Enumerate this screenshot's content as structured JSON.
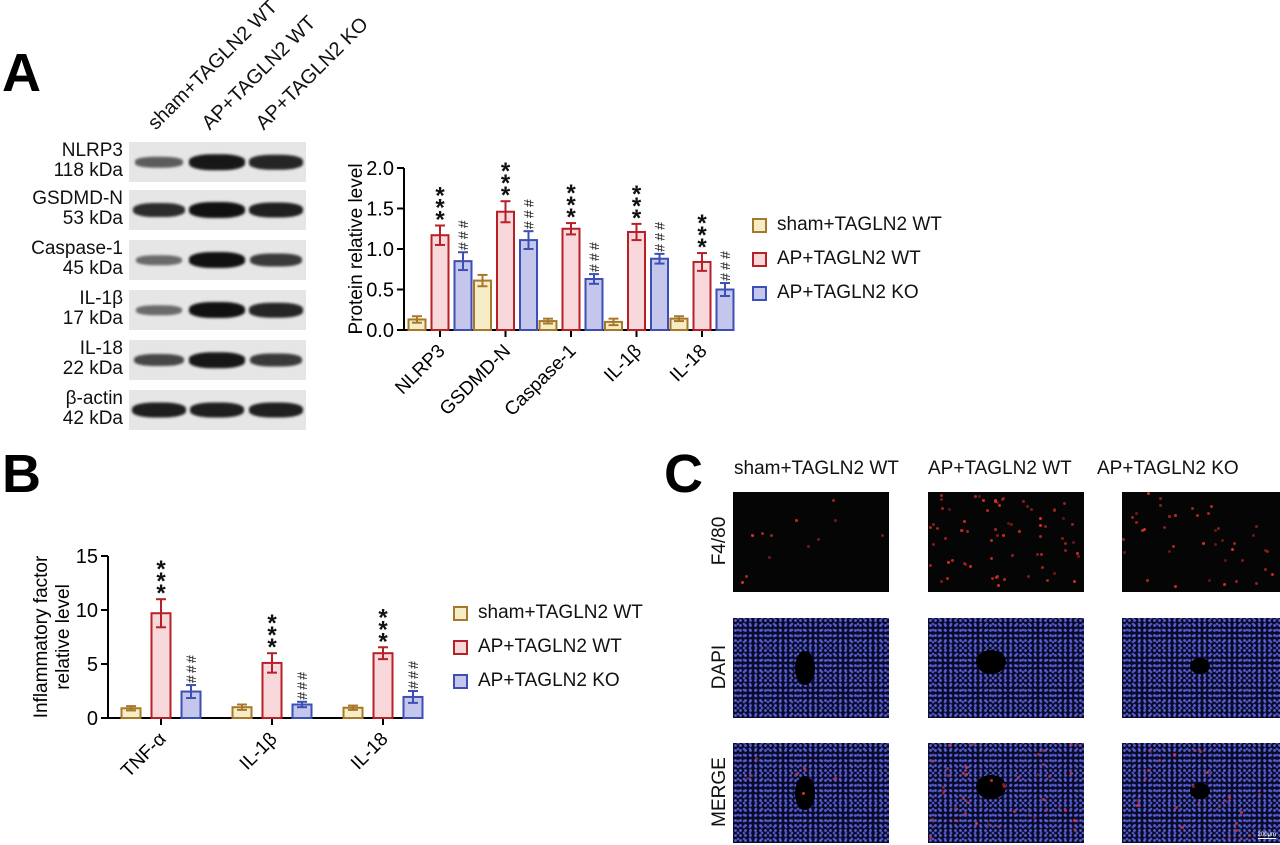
{
  "panels": {
    "A": {
      "letter": "A"
    },
    "B": {
      "letter": "B"
    },
    "C": {
      "letter": "C"
    }
  },
  "groups": [
    "sham+TAGLN2 WT",
    "AP+TAGLN2 WT",
    "AP+TAGLN2 KO"
  ],
  "colors": {
    "sham_fill": "#f5ecc8",
    "sham_border": "#a8782a",
    "ap_wt_fill": "#f9d8dc",
    "ap_wt_border": "#b82028",
    "ap_ko_fill": "#c5c6ec",
    "ap_ko_border": "#3b4fb4"
  },
  "western_blot": {
    "lanes": [
      "sham+TAGLN2 WT",
      "AP+TAGLN2 WT",
      "AP+TAGLN2 KO"
    ],
    "rows": [
      {
        "protein": "NLRP3",
        "size": "118 kDa",
        "intensity": [
          0.45,
          0.95,
          0.85
        ]
      },
      {
        "protein": "GSDMD-N",
        "size": "53 kDa",
        "intensity": [
          0.8,
          1.0,
          0.9
        ]
      },
      {
        "protein": "Caspase-1",
        "size": "45 kDa",
        "intensity": [
          0.35,
          1.0,
          0.7
        ]
      },
      {
        "protein": "IL-1β",
        "size": "17 kDa",
        "intensity": [
          0.35,
          1.0,
          0.85
        ]
      },
      {
        "protein": "IL-18",
        "size": "22 kDa",
        "intensity": [
          0.6,
          0.95,
          0.7
        ]
      },
      {
        "protein": "β-actin",
        "size": "42 kDa",
        "intensity": [
          0.9,
          0.9,
          0.9
        ]
      }
    ]
  },
  "legend": {
    "items": [
      "sham+TAGLN2 WT",
      "AP+TAGLN2 WT",
      "AP+TAGLN2 KO"
    ]
  },
  "chart_data": [
    {
      "id": "A",
      "type": "bar",
      "title": "",
      "xlabel": "",
      "ylabel": "Protein relative level",
      "ylim": [
        0,
        2.0
      ],
      "yticks": [
        "0.0",
        "0.5",
        "1.0",
        "1.5",
        "2.0"
      ],
      "categories": [
        "NLRP3",
        "GSDMD-N",
        "Caspase-1",
        "IL-1β",
        "IL-18"
      ],
      "series": [
        {
          "name": "sham+TAGLN2 WT",
          "values": [
            0.13,
            0.61,
            0.11,
            0.1,
            0.14
          ],
          "errors": [
            0.04,
            0.07,
            0.03,
            0.04,
            0.03
          ]
        },
        {
          "name": "AP+TAGLN2 WT",
          "values": [
            1.17,
            1.46,
            1.25,
            1.21,
            0.84
          ],
          "errors": [
            0.12,
            0.13,
            0.07,
            0.1,
            0.11
          ]
        },
        {
          "name": "AP+TAGLN2 KO",
          "values": [
            0.85,
            1.11,
            0.63,
            0.88,
            0.5
          ],
          "errors": [
            0.11,
            0.11,
            0.06,
            0.06,
            0.08
          ]
        }
      ],
      "annotations": {
        "AP+TAGLN2 WT": "***",
        "AP+TAGLN2 KO": "###"
      },
      "legend_position": "right",
      "grid": false
    },
    {
      "id": "B",
      "type": "bar",
      "title": "",
      "xlabel": "",
      "ylabel": "Inflammatory factor relative level",
      "ylabel_lines": [
        "Inflammatory factor",
        "relative level"
      ],
      "ylim": [
        0,
        15
      ],
      "yticks": [
        "0",
        "5",
        "10",
        "15"
      ],
      "categories": [
        "TNF-α",
        "IL-1β",
        "IL-18"
      ],
      "series": [
        {
          "name": "sham+TAGLN2 WT",
          "values": [
            0.9,
            1.0,
            0.95
          ],
          "errors": [
            0.2,
            0.25,
            0.2
          ]
        },
        {
          "name": "AP+TAGLN2 WT",
          "values": [
            9.7,
            5.1,
            6.0
          ],
          "errors": [
            1.3,
            0.9,
            0.55
          ]
        },
        {
          "name": "AP+TAGLN2 KO",
          "values": [
            2.45,
            1.25,
            1.95
          ],
          "errors": [
            0.6,
            0.25,
            0.55
          ]
        }
      ],
      "annotations": {
        "AP+TAGLN2 WT": "***",
        "AP+TAGLN2 KO": "###"
      },
      "legend_position": "right",
      "grid": false
    }
  ],
  "microscopy": {
    "columns": [
      "sham+TAGLN2 WT",
      "AP+TAGLN2 WT",
      "AP+TAGLN2 KO"
    ],
    "rows": [
      "F4/80",
      "DAPI",
      "MERGE"
    ],
    "scale_bar": "200μm"
  }
}
